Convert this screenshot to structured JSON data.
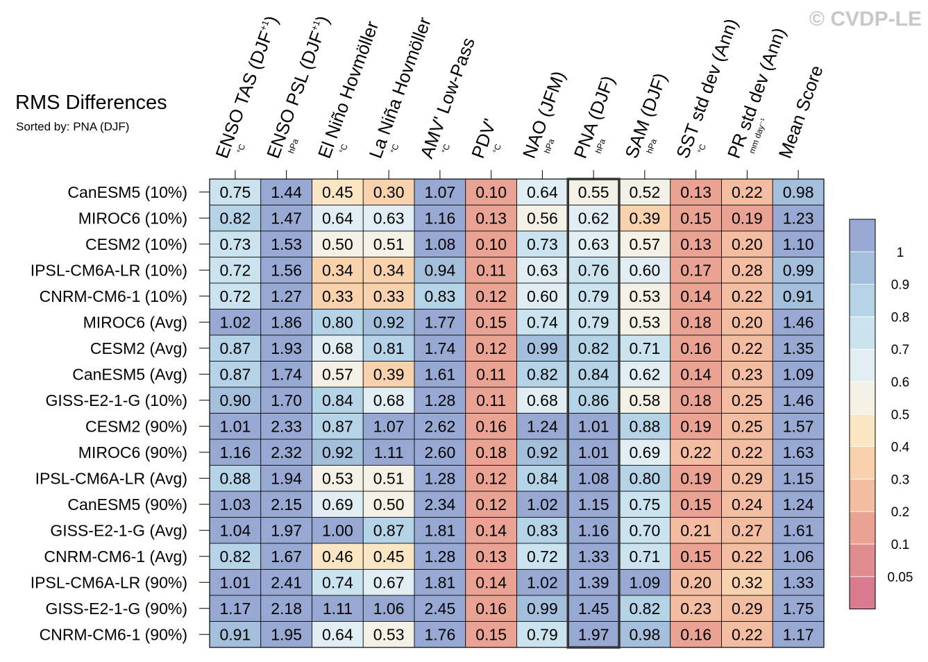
{
  "watermark": "© CVDP-LE",
  "title": "RMS Differences",
  "subtitle": "Sorted by: PNA (DJF)",
  "chart_data": {
    "type": "heatmap",
    "title": "RMS Differences",
    "subtitle": "Sorted by: PNA (DJF)",
    "columns": [
      {
        "label": "ENSO TAS (DJF",
        "sup": "+1",
        "close": ")",
        "unit": "°C"
      },
      {
        "label": "ENSO PSL (DJF",
        "sup": "+1",
        "close": ")",
        "unit": "hPa"
      },
      {
        "label": "El Niño Hovmöller",
        "sup": "",
        "close": "",
        "unit": "°C"
      },
      {
        "label": "La Niña Hovmöller",
        "sup": "",
        "close": "",
        "unit": "°C"
      },
      {
        "label": "AMV' Low-Pass",
        "sup": "",
        "close": "",
        "unit": "°C"
      },
      {
        "label": "PDV'",
        "sup": "",
        "close": "",
        "unit": "°C"
      },
      {
        "label": "NAO (JFM)",
        "sup": "",
        "close": "",
        "unit": "hPa"
      },
      {
        "label": "PNA (DJF)",
        "sup": "",
        "close": "",
        "unit": "hPa"
      },
      {
        "label": "SAM (DJF)",
        "sup": "",
        "close": "",
        "unit": "hPa"
      },
      {
        "label": "SST std dev (Ann)",
        "sup": "",
        "close": "",
        "unit": "°C"
      },
      {
        "label": "PR std dev (Ann)",
        "sup": "",
        "close": "",
        "unit": "mm day⁻¹"
      },
      {
        "label": "Mean Score",
        "sup": "",
        "close": "",
        "unit": ""
      }
    ],
    "rows": [
      "CanESM5 (10%)",
      "MIROC6 (10%)",
      "CESM2 (10%)",
      "IPSL-CM6A-LR (10%)",
      "CNRM-CM6-1 (10%)",
      "MIROC6 (Avg)",
      "CESM2 (Avg)",
      "CanESM5 (Avg)",
      "GISS-E2-1-G (10%)",
      "CESM2 (90%)",
      "MIROC6 (90%)",
      "IPSL-CM6A-LR (Avg)",
      "CanESM5 (90%)",
      "GISS-E2-1-G (Avg)",
      "CNRM-CM6-1 (Avg)",
      "IPSL-CM6A-LR (90%)",
      "GISS-E2-1-G (90%)",
      "CNRM-CM6-1 (90%)"
    ],
    "values": [
      [
        "0.75",
        "1.44",
        "0.45",
        "0.30",
        "1.07",
        "0.10",
        "0.64",
        "0.55",
        "0.52",
        "0.13",
        "0.22",
        "0.98"
      ],
      [
        "0.82",
        "1.47",
        "0.64",
        "0.63",
        "1.16",
        "0.13",
        "0.56",
        "0.62",
        "0.39",
        "0.15",
        "0.19",
        "1.23"
      ],
      [
        "0.73",
        "1.53",
        "0.50",
        "0.51",
        "1.08",
        "0.10",
        "0.73",
        "0.63",
        "0.57",
        "0.13",
        "0.20",
        "1.10"
      ],
      [
        "0.72",
        "1.56",
        "0.34",
        "0.34",
        "0.94",
        "0.11",
        "0.63",
        "0.76",
        "0.60",
        "0.17",
        "0.28",
        "0.99"
      ],
      [
        "0.72",
        "1.27",
        "0.33",
        "0.33",
        "0.83",
        "0.12",
        "0.60",
        "0.79",
        "0.53",
        "0.14",
        "0.22",
        "0.91"
      ],
      [
        "1.02",
        "1.86",
        "0.80",
        "0.92",
        "1.77",
        "0.15",
        "0.74",
        "0.79",
        "0.53",
        "0.18",
        "0.20",
        "1.46"
      ],
      [
        "0.87",
        "1.93",
        "0.68",
        "0.81",
        "1.74",
        "0.12",
        "0.99",
        "0.82",
        "0.71",
        "0.16",
        "0.22",
        "1.35"
      ],
      [
        "0.87",
        "1.74",
        "0.57",
        "0.39",
        "1.61",
        "0.11",
        "0.82",
        "0.84",
        "0.62",
        "0.14",
        "0.23",
        "1.09"
      ],
      [
        "0.90",
        "1.70",
        "0.84",
        "0.68",
        "1.28",
        "0.11",
        "0.68",
        "0.86",
        "0.58",
        "0.18",
        "0.25",
        "1.46"
      ],
      [
        "1.01",
        "2.33",
        "0.87",
        "1.07",
        "2.62",
        "0.16",
        "1.24",
        "1.01",
        "0.88",
        "0.19",
        "0.25",
        "1.57"
      ],
      [
        "1.16",
        "2.32",
        "0.92",
        "1.11",
        "2.60",
        "0.18",
        "0.92",
        "1.01",
        "0.69",
        "0.22",
        "0.22",
        "1.63"
      ],
      [
        "0.88",
        "1.94",
        "0.53",
        "0.51",
        "1.28",
        "0.12",
        "0.84",
        "1.08",
        "0.80",
        "0.19",
        "0.29",
        "1.15"
      ],
      [
        "1.03",
        "2.15",
        "0.69",
        "0.50",
        "2.34",
        "0.12",
        "1.02",
        "1.15",
        "0.75",
        "0.15",
        "0.24",
        "1.24"
      ],
      [
        "1.04",
        "1.97",
        "1.00",
        "0.87",
        "1.81",
        "0.14",
        "0.83",
        "1.16",
        "0.70",
        "0.21",
        "0.27",
        "1.61"
      ],
      [
        "0.82",
        "1.67",
        "0.46",
        "0.45",
        "1.28",
        "0.13",
        "0.72",
        "1.33",
        "0.71",
        "0.15",
        "0.22",
        "1.06"
      ],
      [
        "1.01",
        "2.41",
        "0.74",
        "0.67",
        "1.81",
        "0.14",
        "1.02",
        "1.39",
        "1.09",
        "0.20",
        "0.32",
        "1.33"
      ],
      [
        "1.17",
        "2.18",
        "1.11",
        "1.06",
        "2.45",
        "0.16",
        "0.99",
        "1.45",
        "0.82",
        "0.23",
        "0.29",
        "1.75"
      ],
      [
        "0.91",
        "1.95",
        "0.64",
        "0.53",
        "1.76",
        "0.15",
        "0.79",
        "1.97",
        "0.98",
        "0.16",
        "0.22",
        "1.17"
      ]
    ],
    "highlight_column": "PNA (DJF)",
    "colorbar": {
      "levels": [
        "0.05",
        "0.1",
        "0.2",
        "0.3",
        "0.4",
        "0.5",
        "0.6",
        "0.7",
        "0.8",
        "0.9",
        "1"
      ],
      "colors_bottom_to_top": [
        "#d97a8f",
        "#e08b8e",
        "#eaa293",
        "#f4bca0",
        "#f8d2ad",
        "#fbe6c3",
        "#f3f1e6",
        "#e0eef4",
        "#cae3ee",
        "#b5d3e6",
        "#a4bfdc",
        "#97a9d3"
      ]
    }
  }
}
